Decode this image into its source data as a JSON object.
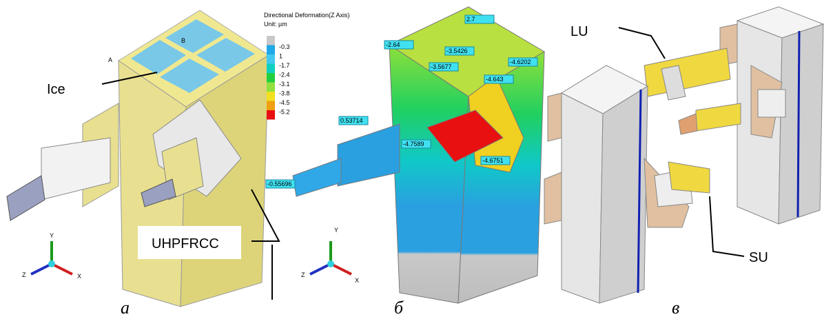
{
  "panel_a": {
    "label_a": "A",
    "label_b": "B",
    "ice": "Ice",
    "material": "UHPFRCC",
    "axes": [
      "Y",
      "Z",
      "X"
    ],
    "caption": "а"
  },
  "panel_b": {
    "legend_title": "Directional Deformation(Z Axis)",
    "legend_unit": "Unit: µm",
    "legend_labels": [
      "-0.3",
      "1",
      "-1.7",
      "-2.4",
      "-3.1",
      "-3.8",
      "-4.5",
      "-5.2"
    ],
    "probes": [
      "2.7",
      "-2.64",
      "-3.5426",
      "-4.6202",
      "-3.5677",
      "-4.643",
      "0.53714",
      "-4.7589",
      "-4.6751",
      "-0.55696"
    ],
    "axes": [
      "Y",
      "Z",
      "X"
    ],
    "caption": "б"
  },
  "panel_c": {
    "lu": "LU",
    "su": "SU",
    "caption": "в"
  }
}
